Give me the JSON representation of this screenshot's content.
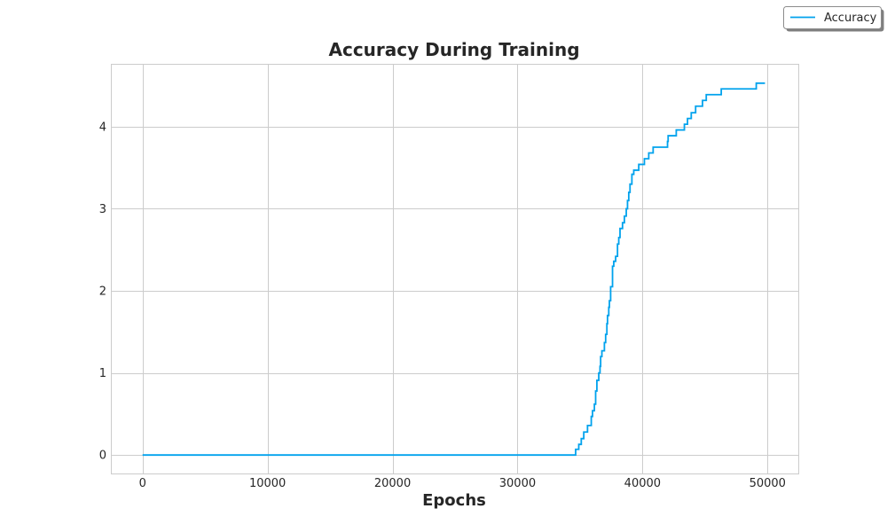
{
  "chart_data": {
    "type": "line",
    "title": "Accuracy During Training",
    "xlabel": "Epochs",
    "ylabel": "",
    "xlim": [
      -2500,
      52500
    ],
    "ylim": [
      -0.23,
      4.76
    ],
    "xticks": [
      0,
      10000,
      20000,
      30000,
      40000,
      50000
    ],
    "yticks": [
      0,
      1,
      2,
      3,
      4
    ],
    "grid": true,
    "legend_position": "top-right",
    "series": [
      {
        "name": "Accuracy",
        "color": "#00a2ed",
        "step": true,
        "points": [
          [
            0,
            0
          ],
          [
            34600,
            0
          ],
          [
            34650,
            0.07
          ],
          [
            34900,
            0.13
          ],
          [
            35100,
            0.2
          ],
          [
            35300,
            0.28
          ],
          [
            35600,
            0.36
          ],
          [
            35900,
            0.47
          ],
          [
            36000,
            0.54
          ],
          [
            36150,
            0.62
          ],
          [
            36250,
            0.78
          ],
          [
            36350,
            0.91
          ],
          [
            36500,
            1.0
          ],
          [
            36600,
            1.08
          ],
          [
            36650,
            1.2
          ],
          [
            36750,
            1.27
          ],
          [
            36950,
            1.37
          ],
          [
            37050,
            1.47
          ],
          [
            37150,
            1.6
          ],
          [
            37200,
            1.7
          ],
          [
            37300,
            1.8
          ],
          [
            37350,
            1.88
          ],
          [
            37450,
            2.05
          ],
          [
            37600,
            2.3
          ],
          [
            37700,
            2.36
          ],
          [
            37850,
            2.42
          ],
          [
            38000,
            2.57
          ],
          [
            38100,
            2.65
          ],
          [
            38200,
            2.76
          ],
          [
            38400,
            2.83
          ],
          [
            38550,
            2.91
          ],
          [
            38700,
            3.0
          ],
          [
            38800,
            3.1
          ],
          [
            38900,
            3.2
          ],
          [
            39000,
            3.3
          ],
          [
            39150,
            3.42
          ],
          [
            39300,
            3.47
          ],
          [
            39700,
            3.54
          ],
          [
            40150,
            3.61
          ],
          [
            40500,
            3.68
          ],
          [
            40850,
            3.75
          ],
          [
            42000,
            3.82
          ],
          [
            42050,
            3.89
          ],
          [
            42700,
            3.96
          ],
          [
            43350,
            4.03
          ],
          [
            43600,
            4.1
          ],
          [
            43900,
            4.17
          ],
          [
            44250,
            4.25
          ],
          [
            44800,
            4.32
          ],
          [
            45100,
            4.39
          ],
          [
            46300,
            4.46
          ],
          [
            49100,
            4.53
          ],
          [
            49800,
            4.53
          ]
        ]
      }
    ]
  }
}
